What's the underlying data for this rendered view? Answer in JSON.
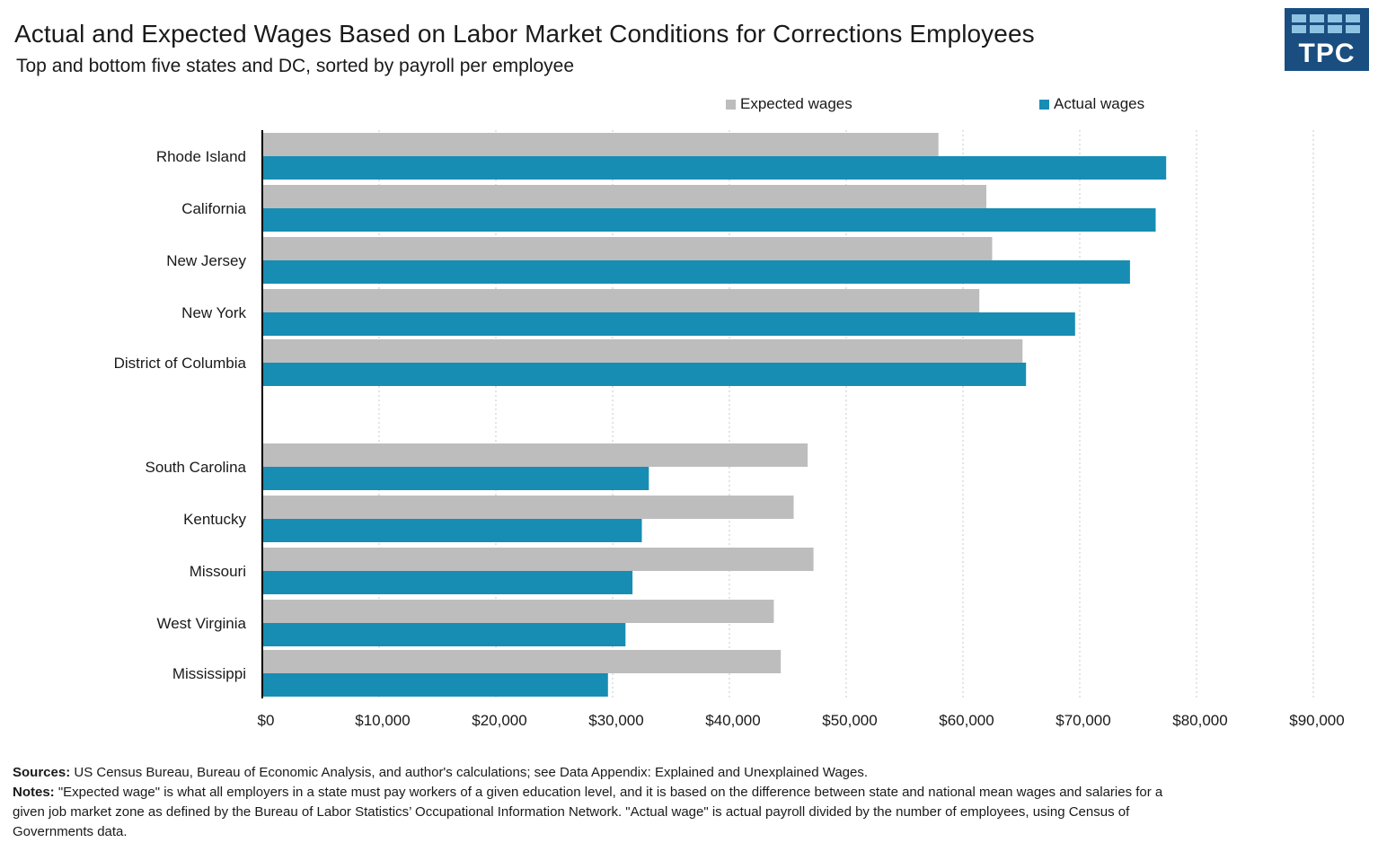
{
  "colors": {
    "expected": "#bdbdbe",
    "actual": "#178db4",
    "logo_bg": "#1a4e80",
    "logo_grid": "#8ec4e2"
  },
  "logo": {
    "text": "TPC"
  },
  "chart_data": {
    "type": "bar",
    "orientation": "horizontal",
    "title": "Actual and Expected Wages Based on Labor Market Conditions for Corrections Employees",
    "subtitle": "Top and bottom five states and DC, sorted by payroll per employee",
    "xlabel": "",
    "ylabel": "",
    "xlim": [
      0,
      90000
    ],
    "x_ticks": [
      0,
      10000,
      20000,
      30000,
      40000,
      50000,
      60000,
      70000,
      80000,
      90000
    ],
    "x_tick_labels": [
      "$0",
      "$10,000",
      "$20,000",
      "$30,000",
      "$40,000",
      "$50,000",
      "$60,000",
      "$70,000",
      "$80,000",
      "$90,000"
    ],
    "grid": "vertical dotted",
    "legend_position": "top-right",
    "categories": [
      "Rhode Island",
      "California",
      "New Jersey",
      "New York",
      "District of Columbia",
      "South Carolina",
      "Kentucky",
      "Missouri",
      "West Virginia",
      "Mississippi"
    ],
    "series": [
      {
        "name": "Expected wages",
        "values": [
          57900,
          62000,
          62500,
          61400,
          65100,
          46700,
          45500,
          47200,
          43800,
          44400
        ]
      },
      {
        "name": "Actual wages",
        "values": [
          77400,
          76500,
          74300,
          69600,
          65400,
          33100,
          32500,
          31700,
          31100,
          29600
        ]
      }
    ]
  },
  "footer": {
    "sources_label": "Sources:",
    "sources_text": " US Census Bureau, Bureau of Economic Analysis, and author's calculations; see Data Appendix: Explained and Unexplained Wages.",
    "notes_label": "Notes:",
    "notes_text": " \"Expected wage\" is what all employers in a state must pay workers of a given education level, and it is based on the difference between state and national mean wages and salaries for a given job market zone as defined by the Bureau of Labor Statistics’ Occupational Information Network. \"Actual wage\" is actual payroll divided by the number of employees, using Census of Governments data."
  }
}
